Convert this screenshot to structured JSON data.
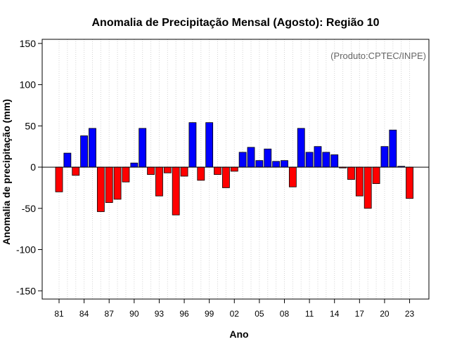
{
  "chart_data": {
    "type": "bar",
    "title": "Anomalia de Precipitação Mensal (Agosto): Região 10",
    "xlabel": "Ano",
    "ylabel": "Anomalia de precipitação (mm)",
    "credit": "(Produto:CPTEC/INPE)",
    "ylim": [
      -160,
      155
    ],
    "yticks": [
      -150,
      -100,
      -50,
      0,
      50,
      100,
      150
    ],
    "xtick_labels": [
      "81",
      "84",
      "87",
      "90",
      "93",
      "96",
      "99",
      "02",
      "05",
      "08",
      "11",
      "14",
      "17",
      "20",
      "23"
    ],
    "xtick_years": [
      1981,
      1984,
      1987,
      1990,
      1993,
      1996,
      1999,
      2002,
      2005,
      2008,
      2011,
      2014,
      2017,
      2020,
      2023
    ],
    "years": [
      1981,
      1982,
      1983,
      1984,
      1985,
      1986,
      1987,
      1988,
      1989,
      1990,
      1991,
      1992,
      1993,
      1994,
      1995,
      1996,
      1997,
      1998,
      1999,
      2000,
      2001,
      2002,
      2003,
      2004,
      2005,
      2006,
      2007,
      2008,
      2009,
      2010,
      2011,
      2012,
      2013,
      2014,
      2015,
      2016,
      2017,
      2018,
      2019,
      2020,
      2021,
      2022,
      2023
    ],
    "values": [
      -30,
      17,
      -10,
      38,
      47,
      -54,
      -43,
      -39,
      -18,
      5,
      47,
      -9,
      -35,
      -7,
      -58,
      -11,
      54,
      -16,
      54,
      -9,
      -25,
      -5,
      18,
      24,
      8,
      22,
      7,
      8,
      -24,
      47,
      18,
      25,
      18,
      15,
      -1,
      -15,
      -35,
      -50,
      -20,
      25,
      45,
      1,
      -38
    ],
    "grid": "vertical-dotted",
    "colors": {
      "positive": "#0000ff",
      "negative": "#ff0000",
      "zero_line": "#000000",
      "grid": "#d3d3d3"
    }
  }
}
